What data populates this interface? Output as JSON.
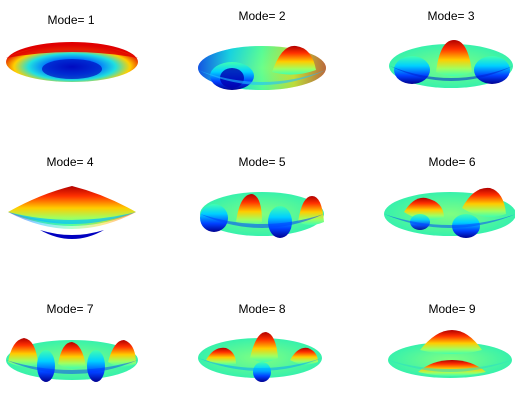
{
  "figure": {
    "colormap": [
      "#00008f",
      "#0000ff",
      "#0080ff",
      "#00ffff",
      "#80ff80",
      "#ffff00",
      "#ff8000",
      "#ff0000",
      "#800000"
    ],
    "background": "#ffffff",
    "panels": [
      {
        "title": "Mode= 1",
        "mode": 1
      },
      {
        "title": "Mode= 2",
        "mode": 2
      },
      {
        "title": "Mode= 3",
        "mode": 3
      },
      {
        "title": "Mode= 4",
        "mode": 4
      },
      {
        "title": "Mode= 5",
        "mode": 5
      },
      {
        "title": "Mode= 6",
        "mode": 6
      },
      {
        "title": "Mode= 7",
        "mode": 7
      },
      {
        "title": "Mode= 8",
        "mode": 8
      },
      {
        "title": "Mode= 9",
        "mode": 9
      }
    ]
  }
}
